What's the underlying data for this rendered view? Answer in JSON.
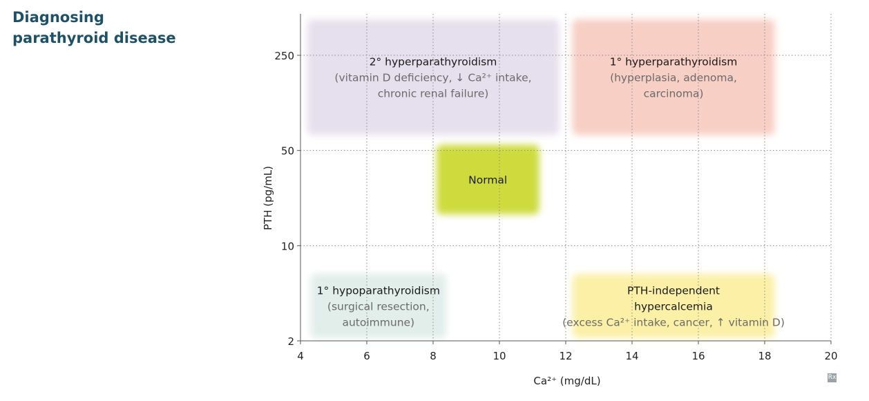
{
  "title": {
    "line1": "Diagnosing",
    "line2": "parathyroid disease"
  },
  "chart_data": {
    "type": "region-map",
    "xlabel": "Ca²⁺ (mg/dL)",
    "ylabel": "PTH (pg/mL)",
    "xlim": [
      4,
      20
    ],
    "x_ticks": [
      4,
      6,
      8,
      10,
      12,
      14,
      16,
      18,
      20
    ],
    "y_scale": "log",
    "y_ticks": [
      2,
      10,
      50,
      250
    ],
    "ylim": [
      2,
      250
    ],
    "grid": "dotted",
    "regions": [
      {
        "name": "secondary",
        "x_range": [
          4.2,
          11.8
        ],
        "y_range": [
          65,
          550
        ],
        "color": "#e6e0ee",
        "lines": [
          {
            "text": "2° hyperparathyroidism",
            "style": "title"
          },
          {
            "text": "(vitamin D deficiency, ↓ Ca²⁺ intake,",
            "style": "detail"
          },
          {
            "text": "chronic renal failure)",
            "style": "detail"
          }
        ]
      },
      {
        "name": "primary",
        "x_range": [
          12.2,
          18.3
        ],
        "y_range": [
          65,
          550
        ],
        "color": "#f7cfc4",
        "lines": [
          {
            "text": "1° hyperparathyroidism",
            "style": "title"
          },
          {
            "text": "(hyperplasia, adenoma,",
            "style": "detail"
          },
          {
            "text": "carcinoma)",
            "style": "detail"
          }
        ]
      },
      {
        "name": "normal",
        "x_range": [
          8.1,
          11.2
        ],
        "y_range": [
          17,
          55
        ],
        "color": "#cfdb3e",
        "lines": [
          {
            "text": "Normal",
            "style": "title"
          }
        ]
      },
      {
        "name": "primary-hypo",
        "x_range": [
          4.3,
          8.4
        ],
        "y_range": [
          2.1,
          6.2
        ],
        "color": "#e1eeea",
        "lines": [
          {
            "text": "1° hypoparathyroidism",
            "style": "title"
          },
          {
            "text": "(surgical resection,",
            "style": "detail"
          },
          {
            "text": "autoimmune)",
            "style": "detail"
          }
        ]
      },
      {
        "name": "pth-independent",
        "x_range": [
          12.2,
          18.3
        ],
        "y_range": [
          2.1,
          6.2
        ],
        "color": "#fbf0a6",
        "lines": [
          {
            "text": "PTH-independent",
            "style": "title"
          },
          {
            "text": "hypercalcemia",
            "style": "title"
          },
          {
            "text": "(excess Ca²⁺ intake, cancer, ↑ vitamin D)",
            "style": "detail"
          }
        ]
      }
    ]
  },
  "badge": "Rx",
  "colors": {
    "title": "#1f5166",
    "label_dark": "#1a1a1a",
    "label_gray": "#6b6b6b",
    "axis": "#555555"
  }
}
